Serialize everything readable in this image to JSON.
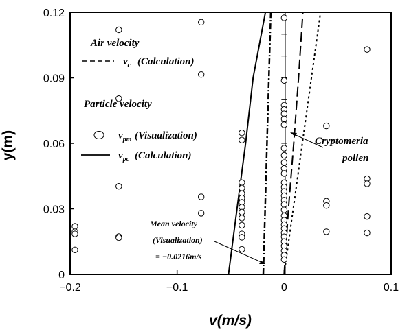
{
  "chart_data": {
    "type": "scatter",
    "title": "",
    "xlabel": "v(m/s)",
    "ylabel": "y(m)",
    "xlim": [
      -0.2,
      0.1
    ],
    "ylim": [
      0,
      0.12
    ],
    "x_tick_labels": [
      "−0.2",
      "−0.1",
      "0",
      "0.1"
    ],
    "x_tick_values": [
      -0.2,
      -0.1,
      0,
      0.1
    ],
    "y_tick_labels": [
      "0",
      "0.03",
      "0.06",
      "0.09",
      "0.12"
    ],
    "y_tick_values": [
      0,
      0.03,
      0.06,
      0.09,
      0.12
    ],
    "grid": false,
    "legend": {
      "air_heading": "Air velocity",
      "particle_heading": "Particle velocity",
      "entries": [
        {
          "var": "v",
          "sub": "c",
          "label": "(Calculation)",
          "style": "dashed"
        },
        {
          "var": "v",
          "sub": "pm",
          "label": "(Visualization)",
          "style": "circle"
        },
        {
          "var": "v",
          "sub": "pc",
          "label": "(Calculation)",
          "style": "solid"
        }
      ]
    },
    "annotations": {
      "cryptomeria": [
        "Cryptomeria",
        "pollen"
      ],
      "mean_velocity": [
        "Mean velocity",
        "(Visualization)",
        "= −0.0216m/s"
      ]
    },
    "series": [
      {
        "name": "vpm (Visualization)",
        "style": "circle",
        "points": [
          [
            -0.1955,
            0.022
          ],
          [
            -0.1955,
            0.0195
          ],
          [
            -0.1955,
            0.0185
          ],
          [
            -0.1955,
            0.0112
          ],
          [
            -0.1545,
            0.112
          ],
          [
            -0.1545,
            0.0805
          ],
          [
            -0.1545,
            0.0403
          ],
          [
            -0.1545,
            0.0173
          ],
          [
            -0.1545,
            0.0168
          ],
          [
            -0.0775,
            0.1155
          ],
          [
            -0.0775,
            0.0915
          ],
          [
            -0.0775,
            0.0355
          ],
          [
            -0.0775,
            0.028
          ],
          [
            -0.0395,
            0.0648
          ],
          [
            -0.0395,
            0.0615
          ],
          [
            -0.0395,
            0.042
          ],
          [
            -0.0395,
            0.0395
          ],
          [
            -0.0395,
            0.037
          ],
          [
            -0.0395,
            0.035
          ],
          [
            -0.0395,
            0.033
          ],
          [
            -0.0395,
            0.0308
          ],
          [
            -0.0395,
            0.0285
          ],
          [
            -0.0395,
            0.0258
          ],
          [
            -0.0395,
            0.0225
          ],
          [
            -0.0395,
            0.0185
          ],
          [
            -0.0395,
            0.017
          ],
          [
            -0.0395,
            0.0115
          ],
          [
            0,
            0.1175
          ],
          [
            0,
            0.0888
          ],
          [
            0,
            0.0775
          ],
          [
            0,
            0.0755
          ],
          [
            0,
            0.0735
          ],
          [
            0,
            0.0712
          ],
          [
            0,
            0.0685
          ],
          [
            0,
            0.0578
          ],
          [
            0,
            0.0545
          ],
          [
            0,
            0.0512
          ],
          [
            0,
            0.0485
          ],
          [
            0,
            0.0462
          ],
          [
            0,
            0.042
          ],
          [
            0,
            0.04
          ],
          [
            0,
            0.038
          ],
          [
            0,
            0.036
          ],
          [
            0,
            0.034
          ],
          [
            0,
            0.032
          ],
          [
            0,
            0.0295
          ],
          [
            0,
            0.0268
          ],
          [
            0,
            0.0248
          ],
          [
            0,
            0.0228
          ],
          [
            0,
            0.021
          ],
          [
            0,
            0.019
          ],
          [
            0,
            0.0172
          ],
          [
            0,
            0.015
          ],
          [
            0,
            0.013
          ],
          [
            0,
            0.0108
          ],
          [
            0,
            0.0088
          ],
          [
            0,
            0.0068
          ],
          [
            0.0395,
            0.068
          ],
          [
            0.0395,
            0.0335
          ],
          [
            0.0395,
            0.0315
          ],
          [
            0.0395,
            0.0195
          ],
          [
            0.0775,
            0.103
          ],
          [
            0.0775,
            0.0438
          ],
          [
            0.0775,
            0.0415
          ],
          [
            0.0775,
            0.0265
          ],
          [
            0.0775,
            0.019
          ]
        ]
      },
      {
        "name": "vc (Calculation)",
        "style": "dashed",
        "points": [
          [
            0.0,
            0.0
          ],
          [
            0.004,
            0.03
          ],
          [
            0.009,
            0.06
          ],
          [
            0.0135,
            0.09
          ],
          [
            0.0175,
            0.12
          ]
        ]
      },
      {
        "name": "vpc (Calculation)",
        "style": "solid",
        "points": [
          [
            -0.052,
            0.0
          ],
          [
            -0.044,
            0.03
          ],
          [
            -0.036,
            0.06
          ],
          [
            -0.029,
            0.09
          ],
          [
            -0.0175,
            0.12
          ]
        ]
      },
      {
        "name": "Mean velocity line",
        "style": "dashdot",
        "points": [
          [
            -0.0195,
            0.0
          ],
          [
            -0.016,
            0.06
          ],
          [
            -0.0125,
            0.12
          ]
        ]
      },
      {
        "name": "Dotted line",
        "style": "dotted",
        "points": [
          [
            0.0,
            0.0
          ],
          [
            0.034,
            0.12
          ]
        ]
      }
    ]
  }
}
